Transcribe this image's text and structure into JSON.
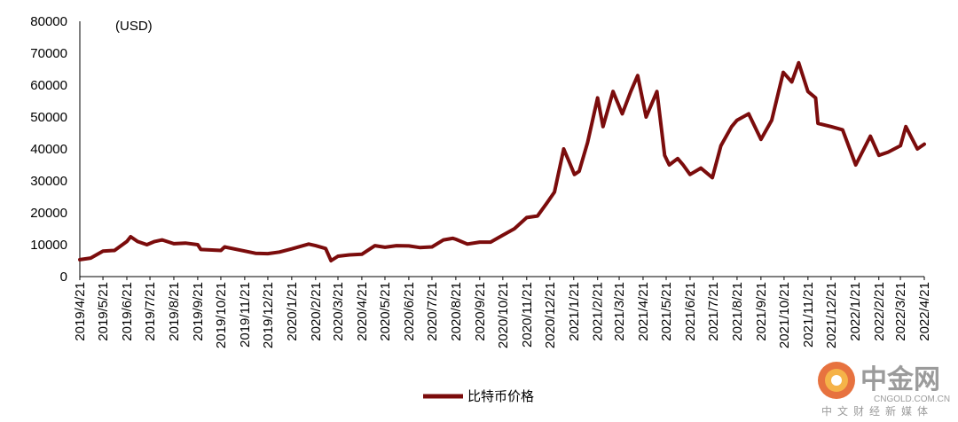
{
  "chart_data": {
    "type": "line",
    "unit_label": "(USD)",
    "ylim": [
      0,
      80000
    ],
    "yticks": [
      0,
      10000,
      20000,
      30000,
      40000,
      50000,
      60000,
      70000,
      80000
    ],
    "x_tick_labels": [
      "2019/4/21",
      "2019/5/21",
      "2019/6/21",
      "2019/7/21",
      "2019/8/21",
      "2019/9/21",
      "2019/10/21",
      "2019/11/21",
      "2019/12/21",
      "2020/1/21",
      "2020/2/21",
      "2020/3/21",
      "2020/4/21",
      "2020/5/21",
      "2020/6/21",
      "2020/7/21",
      "2020/8/21",
      "2020/9/21",
      "2020/10/21",
      "2020/11/21",
      "2020/12/21",
      "2021/1/21",
      "2021/2/21",
      "2021/3/21",
      "2021/4/21",
      "2021/5/21",
      "2021/6/21",
      "2021/7/21",
      "2021/8/21",
      "2021/9/21",
      "2021/10/21",
      "2021/11/21",
      "2021/12/21",
      "2022/1/21",
      "2022/2/21",
      "2022/3/21",
      "2022/4/21"
    ],
    "series": [
      {
        "name": "比特币价格",
        "color": "#7b0c0c",
        "x": [
          "2019-04-21",
          "2019-05-05",
          "2019-05-21",
          "2019-06-05",
          "2019-06-21",
          "2019-06-26",
          "2019-07-05",
          "2019-07-17",
          "2019-07-27",
          "2019-08-06",
          "2019-08-21",
          "2019-09-05",
          "2019-09-21",
          "2019-09-25",
          "2019-10-21",
          "2019-10-26",
          "2019-11-21",
          "2019-12-05",
          "2019-12-21",
          "2020-01-05",
          "2020-01-21",
          "2020-02-12",
          "2020-02-21",
          "2020-03-05",
          "2020-03-12",
          "2020-03-21",
          "2020-04-05",
          "2020-04-21",
          "2020-05-08",
          "2020-05-21",
          "2020-06-05",
          "2020-06-21",
          "2020-07-05",
          "2020-07-21",
          "2020-08-05",
          "2020-08-17",
          "2020-08-21",
          "2020-09-05",
          "2020-09-21",
          "2020-10-05",
          "2020-10-21",
          "2020-11-05",
          "2020-11-21",
          "2020-12-05",
          "2020-12-17",
          "2020-12-27",
          "2021-01-08",
          "2021-01-15",
          "2021-01-22",
          "2021-01-28",
          "2021-02-08",
          "2021-02-21",
          "2021-02-28",
          "2021-03-13",
          "2021-03-25",
          "2021-04-05",
          "2021-04-14",
          "2021-04-25",
          "2021-05-09",
          "2021-05-19",
          "2021-05-25",
          "2021-06-05",
          "2021-06-12",
          "2021-06-21",
          "2021-07-05",
          "2021-07-20",
          "2021-07-31",
          "2021-08-14",
          "2021-08-21",
          "2021-09-05",
          "2021-09-21",
          "2021-10-05",
          "2021-10-20",
          "2021-10-31",
          "2021-11-09",
          "2021-11-21",
          "2021-12-01",
          "2021-12-04",
          "2021-12-21",
          "2022-01-05",
          "2022-01-22",
          "2022-02-10",
          "2022-02-21",
          "2022-03-05",
          "2022-03-21",
          "2022-03-28",
          "2022-04-12",
          "2022-04-21"
        ],
        "values": [
          5300,
          5800,
          8000,
          8200,
          11000,
          12500,
          11000,
          10000,
          11000,
          11500,
          10300,
          10500,
          10000,
          8500,
          8200,
          9300,
          8000,
          7300,
          7200,
          7700,
          8700,
          10200,
          9700,
          8800,
          5000,
          6400,
          6800,
          7000,
          9700,
          9200,
          9700,
          9600,
          9100,
          9300,
          11500,
          12000,
          11700,
          10200,
          10800,
          10800,
          13000,
          15000,
          18500,
          19000,
          23000,
          26500,
          40000,
          36000,
          32000,
          33000,
          42000,
          56000,
          47000,
          58000,
          51000,
          58000,
          63000,
          50000,
          58000,
          38000,
          35000,
          37000,
          35000,
          32000,
          34000,
          31000,
          41000,
          47000,
          49000,
          51000,
          43000,
          49000,
          64000,
          61000,
          67000,
          58000,
          56000,
          48000,
          47000,
          46000,
          35000,
          44000,
          38000,
          39000,
          41000,
          47000,
          40000,
          41500
        ]
      }
    ]
  },
  "legend": {
    "label": "比特币价格"
  },
  "watermark": {
    "title": "中金网",
    "domain": "CNGOLD.COM.CN",
    "tagline": "中文财经新媒体"
  }
}
